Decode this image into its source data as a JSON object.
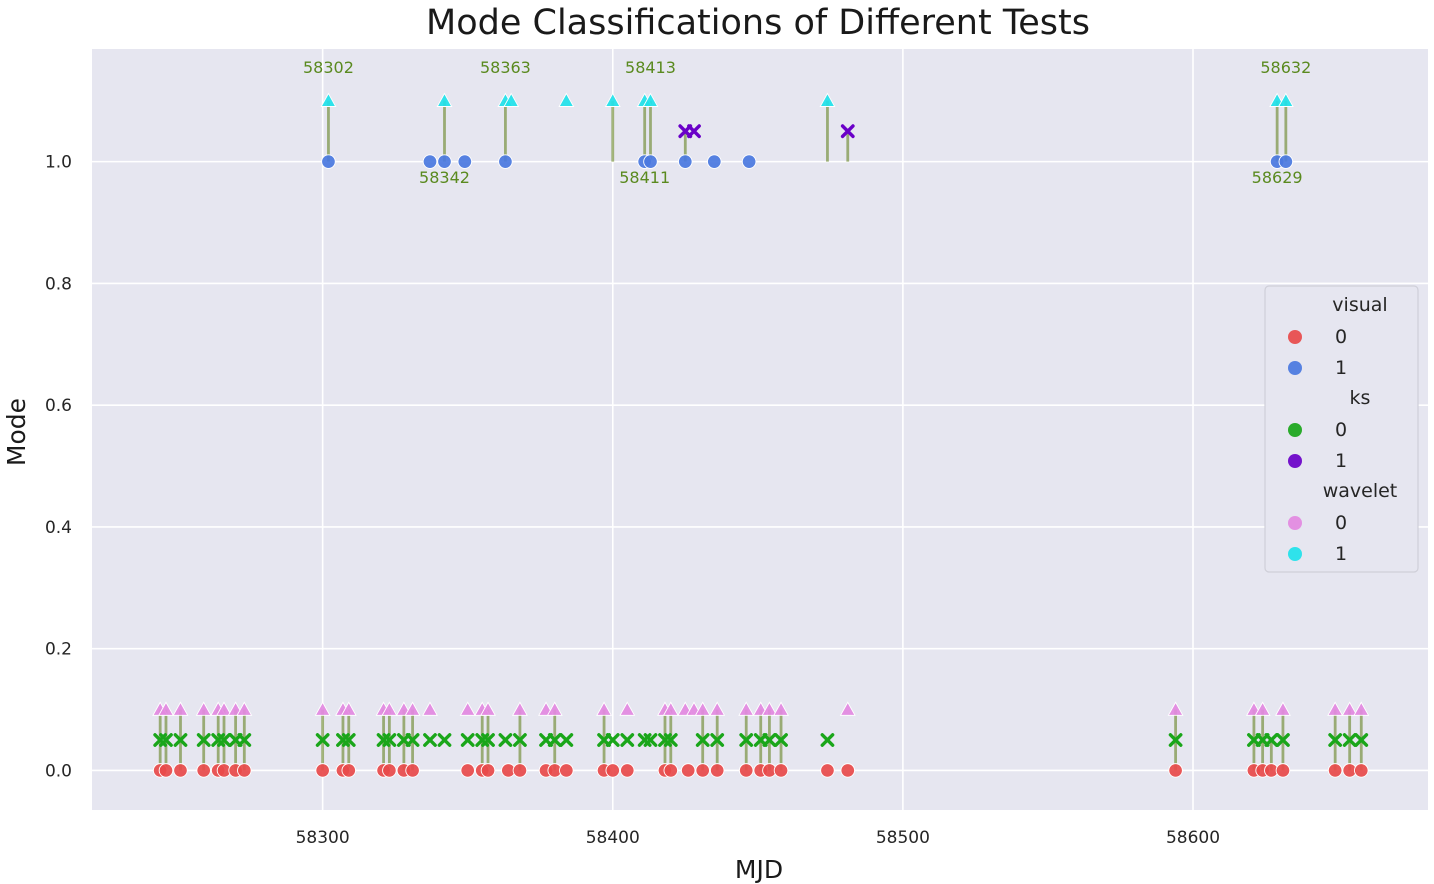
{
  "chart_data": {
    "type": "scatter",
    "title": "Mode Classifications of Different Tests",
    "xlabel": "MJD",
    "ylabel": "Mode",
    "xlim": [
      58220.5,
      58681
    ],
    "ylim": [
      -0.065,
      1.185
    ],
    "xticks": [
      58300,
      58400,
      58500,
      58600
    ],
    "yticks": [
      0.0,
      0.2,
      0.4,
      0.6,
      0.8,
      1.0
    ],
    "ytick_labels": [
      "0.0",
      "0.2",
      "0.4",
      "0.6",
      "0.8",
      "1.0"
    ],
    "grid": true,
    "legend_position": "right",
    "legend": [
      {
        "title": "visual",
        "entries": [
          {
            "label": "0",
            "color": "#e84a4a"
          },
          {
            "label": "1",
            "color": "#4a78e0"
          }
        ]
      },
      {
        "title": "ks",
        "entries": [
          {
            "label": "0",
            "color": "#1aa61a"
          },
          {
            "label": "1",
            "color": "#6a00c8"
          }
        ]
      },
      {
        "title": "wavelet",
        "entries": [
          {
            "label": "0",
            "color": "#e389e1"
          },
          {
            "label": "1",
            "color": "#20e2ea"
          }
        ]
      }
    ],
    "series": [
      {
        "name": "visual",
        "marker": "circle",
        "y_offset": 0.0,
        "x0": [
          58244,
          58246,
          58251,
          58259,
          58264,
          58266,
          58270,
          58273,
          58300,
          58307,
          58309,
          58321,
          58323,
          58328,
          58331,
          58350,
          58355,
          58357,
          58364,
          58368,
          58377,
          58380,
          58384,
          58397,
          58400,
          58405,
          58418,
          58420,
          58426,
          58431,
          58436,
          58446,
          58451,
          58454,
          58458,
          58474,
          58481,
          58594,
          58621,
          58624,
          58627,
          58631,
          58649,
          58654,
          58658
        ],
        "x1": [
          58302,
          58337,
          58342,
          58349,
          58363,
          58411,
          58413,
          58425,
          58435,
          58447,
          58629,
          58632
        ]
      },
      {
        "name": "ks",
        "marker": "x",
        "y_offset": 0.05,
        "x0": [
          58244,
          58246,
          58251,
          58259,
          58264,
          58266,
          58270,
          58273,
          58300,
          58307,
          58309,
          58321,
          58323,
          58328,
          58331,
          58337,
          58342,
          58350,
          58355,
          58357,
          58363,
          58368,
          58377,
          58380,
          58384,
          58397,
          58400,
          58405,
          58411,
          58413,
          58418,
          58420,
          58431,
          58436,
          58446,
          58451,
          58454,
          58458,
          58474,
          58594,
          58621,
          58624,
          58627,
          58631,
          58649,
          58654,
          58658
        ],
        "x1": [
          58425,
          58428,
          58481
        ]
      },
      {
        "name": "wavelet",
        "marker": "triangle",
        "y_offset": 0.1,
        "x0": [
          58244,
          58246,
          58251,
          58259,
          58264,
          58266,
          58270,
          58273,
          58300,
          58307,
          58309,
          58321,
          58323,
          58328,
          58331,
          58337,
          58350,
          58355,
          58357,
          58368,
          58377,
          58380,
          58397,
          58405,
          58418,
          58420,
          58425,
          58428,
          58431,
          58436,
          58446,
          58451,
          58454,
          58458,
          58481,
          58594,
          58621,
          58624,
          58631,
          58649,
          58654,
          58658
        ],
        "x1": [
          58302,
          58342,
          58363,
          58365,
          58384,
          58400,
          58411,
          58413,
          58474,
          58629,
          58632
        ]
      }
    ],
    "stems": [
      58244,
      58246,
      58251,
      58259,
      58264,
      58266,
      58270,
      58273,
      58300,
      58302,
      58307,
      58309,
      58321,
      58323,
      58328,
      58331,
      58342,
      58355,
      58357,
      58363,
      58368,
      58380,
      58397,
      58400,
      58411,
      58413,
      58418,
      58420,
      58425,
      58426,
      58431,
      58436,
      58446,
      58451,
      58454,
      58458,
      58474,
      58481,
      58594,
      58621,
      58624,
      58627,
      58629,
      58631,
      58632,
      58649,
      58654,
      58658
    ],
    "annotations": [
      {
        "text": "58302",
        "x": 58302,
        "position": "above"
      },
      {
        "text": "58363",
        "x": 58363,
        "position": "above"
      },
      {
        "text": "58413",
        "x": 58413,
        "position": "above"
      },
      {
        "text": "58632",
        "x": 58632,
        "position": "above"
      },
      {
        "text": "58342",
        "x": 58342,
        "position": "below"
      },
      {
        "text": "58411",
        "x": 58411,
        "position": "below"
      },
      {
        "text": "58629",
        "x": 58629,
        "position": "below"
      }
    ],
    "colors": {
      "background": "#e6e6f0",
      "grid": "#ffffff",
      "stem": "#5a7a10"
    }
  }
}
